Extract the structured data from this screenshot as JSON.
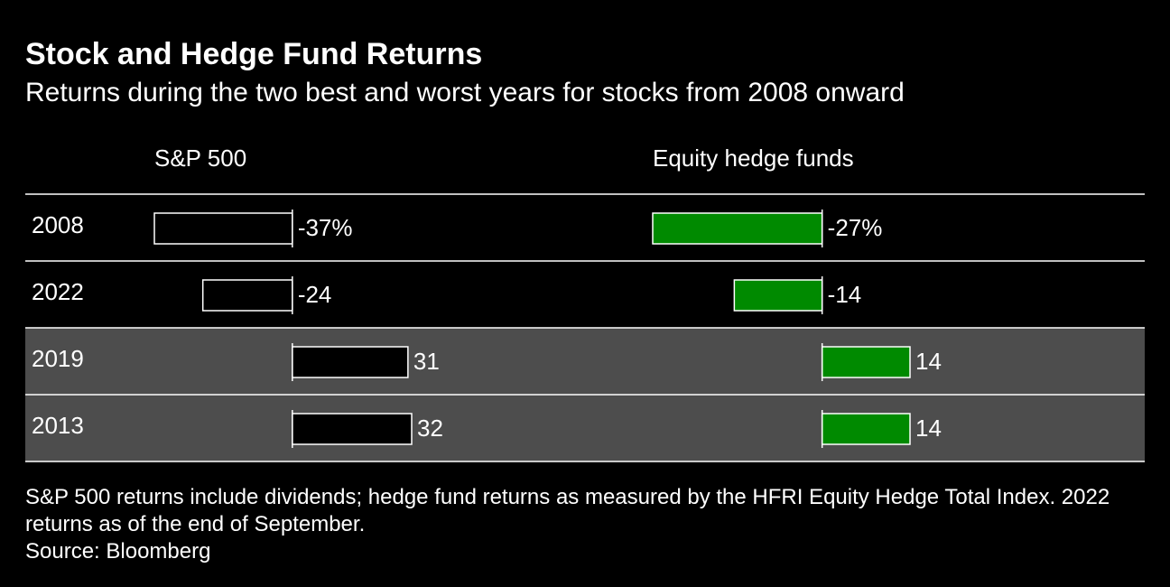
{
  "chart_data": {
    "type": "bar",
    "title": "Stock and Hedge Fund Returns",
    "subtitle": "Returns during the two best and worst years for stocks from 2008 onward",
    "categories": [
      "2008",
      "2022",
      "2019",
      "2013"
    ],
    "series": [
      {
        "name": "S&P 500",
        "color": "#000000",
        "values": [
          -37,
          -24,
          31,
          32
        ],
        "value_labels": [
          "-37%",
          "-24",
          "31",
          "32"
        ]
      },
      {
        "name": "Equity hedge funds",
        "color": "#008a00",
        "values": [
          -27,
          -14,
          14,
          14
        ],
        "value_labels": [
          "-27%",
          "-14",
          "14",
          "14"
        ]
      }
    ],
    "note": "S&P 500 returns include dividends; hedge fund returns as measured by the HFRI Equity Hedge Total Index. 2022 returns as of the end of September.",
    "source": "Source: Bloomberg"
  }
}
